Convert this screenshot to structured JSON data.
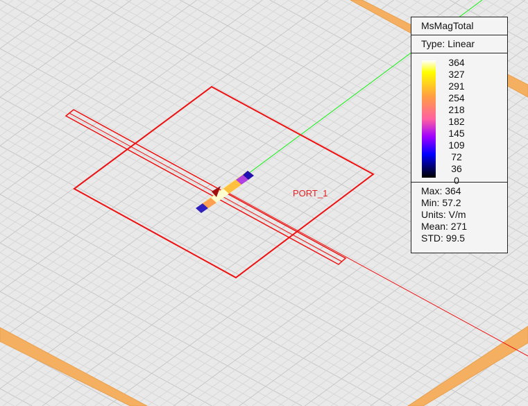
{
  "viewport": {
    "port_label": "PORT_1",
    "colors": {
      "background": "#e9e9e9",
      "grid": "#d2d2d2",
      "outline": "#ee1111",
      "axis_x": "#11ee11",
      "band": "#f4b060"
    }
  },
  "legend": {
    "title": "MsMagTotal",
    "type": "Type: Linear",
    "ticks": [
      "364",
      "327",
      "291",
      "254",
      "218",
      "182",
      "145",
      "109",
      "72",
      "36",
      "0"
    ],
    "stats": {
      "max": "Max: 364",
      "min": "Min: 57.2",
      "units": "Units: V/m",
      "mean": "Mean: 271",
      "std": "STD: 99.5"
    }
  }
}
